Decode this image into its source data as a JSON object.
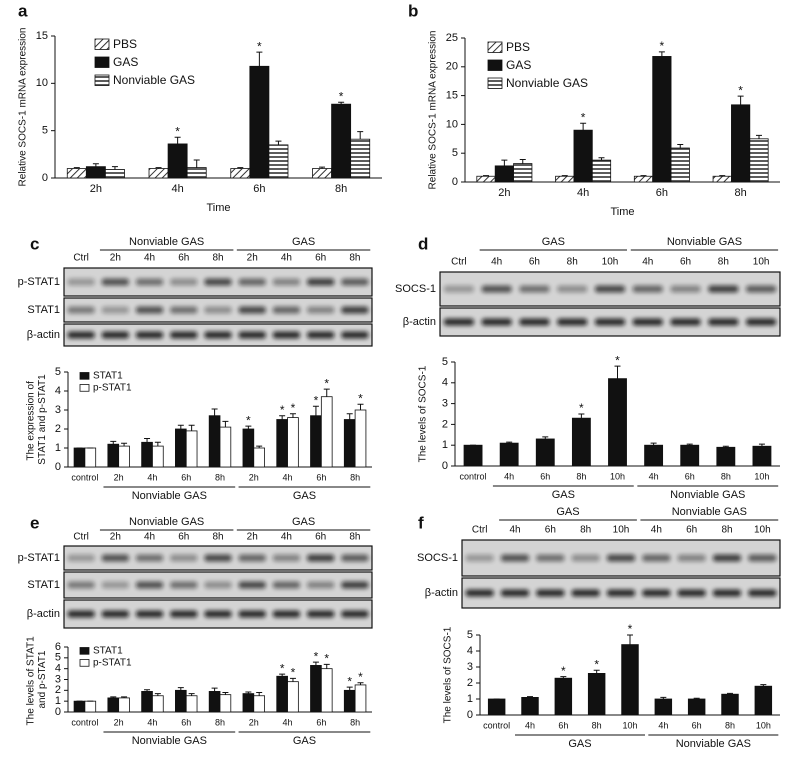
{
  "chart_data": [
    {
      "type": "bar",
      "panel": "a",
      "xlabel": "Time",
      "ylabel": "Relative SOCS-1 mRNA expression",
      "categories": [
        "2h",
        "4h",
        "6h",
        "8h"
      ],
      "ylim": [
        0,
        15
      ],
      "yticks": [
        0,
        5,
        10,
        15
      ],
      "series": [
        {
          "name": "PBS",
          "color": "#444444",
          "pattern": "diagonal",
          "values": [
            1,
            1,
            1,
            1
          ],
          "errors": [
            0.1,
            0.1,
            0.1,
            0.15
          ]
        },
        {
          "name": "GAS",
          "color": "#111111",
          "values": [
            1.2,
            3.6,
            11.8,
            7.8
          ],
          "errors": [
            0.3,
            0.7,
            1.5,
            0.2
          ],
          "significance": [
            null,
            "*",
            "*",
            "*"
          ]
        },
        {
          "name": "Nonviable GAS",
          "color": "#444444",
          "pattern": "horizontal",
          "values": [
            0.9,
            1.1,
            3.5,
            4.1
          ],
          "errors": [
            0.3,
            0.8,
            0.4,
            0.8
          ]
        }
      ]
    },
    {
      "type": "bar",
      "panel": "b",
      "xlabel": "Time",
      "ylabel": "Relative SOCS-1 mRNA expression",
      "categories": [
        "2h",
        "4h",
        "6h",
        "8h"
      ],
      "ylim": [
        0,
        25
      ],
      "yticks": [
        0,
        5,
        10,
        15,
        20,
        25
      ],
      "series": [
        {
          "name": "PBS",
          "color": "#444444",
          "pattern": "diagonal",
          "values": [
            1,
            1,
            1,
            1
          ],
          "errors": [
            0.1,
            0.1,
            0.1,
            0.1
          ]
        },
        {
          "name": "GAS",
          "color": "#111111",
          "values": [
            2.8,
            9,
            21.8,
            13.4
          ],
          "errors": [
            1,
            1.2,
            0.8,
            1.5
          ],
          "significance": [
            null,
            "*",
            "*",
            "*"
          ]
        },
        {
          "name": "Nonviable GAS",
          "color": "#444444",
          "pattern": "horizontal",
          "values": [
            3.2,
            3.8,
            5.9,
            7.5
          ],
          "errors": [
            0.7,
            0.4,
            0.6,
            0.6
          ]
        }
      ]
    },
    {
      "type": "bar",
      "panel": "c",
      "ylabel": "The expression of STAT1 and p-STAT1",
      "categories": [
        "control",
        "2h",
        "4h",
        "6h",
        "8h",
        "2h",
        "4h",
        "6h",
        "8h"
      ],
      "groups": [
        {
          "label": "Nonviable GAS",
          "from": 1,
          "to": 4
        },
        {
          "label": "GAS",
          "from": 5,
          "to": 8
        }
      ],
      "ylim": [
        0,
        5
      ],
      "yticks": [
        0,
        1,
        2,
        3,
        4,
        5
      ],
      "blot": {
        "lanes": [
          "Ctrl",
          "2h",
          "4h",
          "6h",
          "8h",
          "2h",
          "4h",
          "6h",
          "8h"
        ],
        "groups": [
          {
            "label": "Nonviable GAS",
            "from": 1,
            "to": 4
          },
          {
            "label": "GAS",
            "from": 5,
            "to": 8
          }
        ],
        "rows": [
          "p-STAT1",
          "STAT1",
          "β-actin"
        ]
      },
      "series": [
        {
          "name": "STAT1",
          "color": "#111111",
          "values": [
            1,
            1.2,
            1.3,
            2,
            2.7,
            2,
            2.5,
            2.7,
            2.5
          ],
          "errors": [
            0,
            0.15,
            0.2,
            0.2,
            0.35,
            0.15,
            0.2,
            0.5,
            0.3
          ],
          "significance": [
            null,
            null,
            null,
            null,
            null,
            "*",
            "*",
            "*",
            null
          ]
        },
        {
          "name": "p-STAT1",
          "color": "#ffffff",
          "values": [
            1,
            1.1,
            1.1,
            1.9,
            2.1,
            1,
            2.6,
            3.7,
            3
          ],
          "errors": [
            0,
            0.15,
            0.2,
            0.3,
            0.3,
            0.1,
            0.2,
            0.4,
            0.3
          ],
          "significance": [
            null,
            null,
            null,
            null,
            null,
            null,
            "*",
            "*",
            "*"
          ]
        }
      ]
    },
    {
      "type": "bar",
      "panel": "d",
      "ylabel": "The levels of SOCS-1",
      "categories": [
        "control",
        "4h",
        "6h",
        "8h",
        "10h",
        "4h",
        "6h",
        "8h",
        "10h"
      ],
      "groups": [
        {
          "label": "GAS",
          "from": 1,
          "to": 4
        },
        {
          "label": "Nonviable GAS",
          "from": 5,
          "to": 8
        }
      ],
      "ylim": [
        0,
        5
      ],
      "yticks": [
        0,
        1,
        2,
        3,
        4,
        5
      ],
      "blot": {
        "lanes": [
          "Ctrl",
          "4h",
          "6h",
          "8h",
          "10h",
          "4h",
          "6h",
          "8h",
          "10h"
        ],
        "groups": [
          {
            "label": "GAS",
            "from": 1,
            "to": 4
          },
          {
            "label": "Nonviable GAS",
            "from": 5,
            "to": 8
          }
        ],
        "rows": [
          "SOCS-1",
          "β-actin"
        ]
      },
      "series": [
        {
          "name": "SOCS-1",
          "color": "#111111",
          "values": [
            1,
            1.1,
            1.3,
            2.3,
            4.2,
            1,
            1,
            0.9,
            0.95
          ],
          "errors": [
            0,
            0.05,
            0.1,
            0.2,
            0.6,
            0.1,
            0.05,
            0.05,
            0.1
          ],
          "significance": [
            null,
            null,
            null,
            "*",
            "*",
            null,
            null,
            null,
            null
          ]
        }
      ]
    },
    {
      "type": "bar",
      "panel": "e",
      "ylabel": "The levels of STAT1 and p-STAT1",
      "categories": [
        "control",
        "2h",
        "4h",
        "6h",
        "8h",
        "2h",
        "4h",
        "6h",
        "8h"
      ],
      "groups": [
        {
          "label": "Nonviable GAS",
          "from": 1,
          "to": 4
        },
        {
          "label": "GAS",
          "from": 5,
          "to": 8
        }
      ],
      "ylim": [
        0,
        6
      ],
      "yticks": [
        0,
        1,
        2,
        3,
        4,
        5,
        6
      ],
      "blot": {
        "lanes": [
          "Ctrl",
          "2h",
          "4h",
          "6h",
          "8h",
          "2h",
          "4h",
          "6h",
          "8h"
        ],
        "groups": [
          {
            "label": "Nonviable GAS",
            "from": 1,
            "to": 4
          },
          {
            "label": "GAS",
            "from": 5,
            "to": 8
          }
        ],
        "rows": [
          "p-STAT1",
          "STAT1",
          "β-actin"
        ]
      },
      "series": [
        {
          "name": "STAT1",
          "color": "#111111",
          "values": [
            1,
            1.3,
            1.9,
            2,
            1.9,
            1.7,
            3.3,
            4.3,
            2
          ],
          "errors": [
            0,
            0.1,
            0.15,
            0.25,
            0.3,
            0.15,
            0.2,
            0.3,
            0.3
          ],
          "significance": [
            null,
            null,
            null,
            null,
            null,
            null,
            "*",
            "*",
            "*"
          ]
        },
        {
          "name": "p-STAT1",
          "color": "#ffffff",
          "values": [
            1,
            1.3,
            1.5,
            1.5,
            1.6,
            1.5,
            2.8,
            4,
            2.5
          ],
          "errors": [
            0,
            0.1,
            0.2,
            0.2,
            0.2,
            0.3,
            0.3,
            0.4,
            0.2
          ],
          "significance": [
            null,
            null,
            null,
            null,
            null,
            null,
            "*",
            "*",
            "*"
          ]
        }
      ]
    },
    {
      "type": "bar",
      "panel": "f",
      "ylabel": "The levels of SOCS-1",
      "categories": [
        "control",
        "4h",
        "6h",
        "8h",
        "10h",
        "4h",
        "6h",
        "8h",
        "10h"
      ],
      "groups": [
        {
          "label": "GAS",
          "from": 1,
          "to": 4
        },
        {
          "label": "Nonviable GAS",
          "from": 5,
          "to": 8
        }
      ],
      "ylim": [
        0,
        5
      ],
      "yticks": [
        0,
        1,
        2,
        3,
        4,
        5
      ],
      "blot": {
        "lanes": [
          "Ctrl",
          "4h",
          "6h",
          "8h",
          "10h",
          "4h",
          "6h",
          "8h",
          "10h"
        ],
        "groups": [
          {
            "label": "GAS",
            "from": 1,
            "to": 4
          },
          {
            "label": "Nonviable GAS",
            "from": 5,
            "to": 8
          }
        ],
        "rows": [
          "SOCS-1",
          "β-actin"
        ]
      },
      "series": [
        {
          "name": "SOCS-1",
          "color": "#111111",
          "values": [
            1,
            1.1,
            2.3,
            2.6,
            4.4,
            1,
            1,
            1.3,
            1.8
          ],
          "errors": [
            0,
            0.05,
            0.1,
            0.2,
            0.6,
            0.1,
            0.05,
            0.05,
            0.1
          ],
          "significance": [
            null,
            null,
            "*",
            "*",
            "*",
            null,
            null,
            null,
            null
          ]
        }
      ]
    }
  ]
}
